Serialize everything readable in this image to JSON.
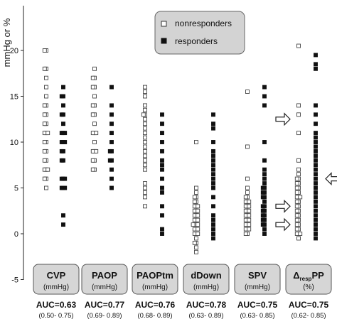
{
  "chart_data": {
    "type": "scatter",
    "ylabel": "mmHg or %",
    "ylim": [
      -5,
      20
    ],
    "yticks": [
      -5,
      0,
      5,
      10,
      15,
      20
    ],
    "legend": {
      "placement": "top-center",
      "items": [
        {
          "label": "nonresponders",
          "marker": "open-square"
        },
        {
          "label": "responders",
          "marker": "filled-square"
        }
      ]
    },
    "groups": [
      {
        "label": "CVP",
        "unit": "(mmHg)",
        "auc": "AUC=0.63",
        "ci": "(0.50- 0.75)",
        "nonresponders": [
          20,
          20,
          18,
          18,
          17,
          16,
          15,
          14,
          14,
          13,
          13,
          12,
          12,
          11,
          11,
          11,
          10,
          10,
          9,
          9,
          8,
          8,
          7,
          7,
          7,
          6,
          6,
          5
        ],
        "responders": [
          16,
          15,
          15,
          14,
          13,
          13,
          12,
          11,
          11,
          11,
          10,
          10,
          10,
          9,
          9,
          8,
          8,
          6,
          6,
          6,
          5,
          5,
          5,
          2,
          1
        ]
      },
      {
        "label": "PAOP",
        "unit": "(mmHg)",
        "auc": "AUC=0.77",
        "ci": "(0.69- 0.89)",
        "nonresponders": [
          18,
          17,
          17,
          16,
          16,
          15,
          14,
          14,
          13,
          13,
          12,
          11,
          11,
          11,
          10,
          9,
          9,
          9,
          8,
          8,
          7,
          7
        ],
        "responders": [
          16,
          14,
          13,
          12,
          11,
          10,
          9,
          9,
          8,
          8,
          7,
          6,
          5
        ]
      },
      {
        "label": "PAOPtm",
        "unit": "(mmHg)",
        "auc": "AUC=0.76",
        "ci": "(0.68- 0.89)",
        "nonresponders": [
          16,
          15.5,
          15,
          14,
          13.5,
          13,
          13,
          12.5,
          12,
          11.5,
          11,
          10.5,
          10,
          9.5,
          9,
          8.5,
          8,
          7.5,
          7,
          5.5,
          5,
          4.5,
          4,
          3
        ],
        "responders": [
          13,
          12,
          11,
          10,
          9,
          8,
          7.5,
          7,
          6,
          5,
          4.5,
          3,
          2,
          0.5,
          0
        ]
      },
      {
        "label": "dDown",
        "unit": "(mmHg)",
        "auc": "AUC=0.78",
        "ci": "(0.63- 0.89)",
        "nonresponders": [
          10,
          5,
          4.5,
          4,
          4,
          3.5,
          3.5,
          3,
          3,
          3,
          2.5,
          2.5,
          2.5,
          2,
          2,
          2,
          1.5,
          1.5,
          1.5,
          1,
          1,
          1,
          1,
          0.5,
          0.5,
          0.5,
          0,
          0,
          0,
          -0.5,
          -1,
          -1,
          -1.5,
          -2
        ],
        "responders": [
          13,
          12,
          11.5,
          10,
          9,
          8.5,
          8,
          7.5,
          7,
          6.5,
          6,
          5.5,
          5,
          4,
          3,
          2,
          1.5,
          1,
          0.5,
          0,
          -0.5
        ]
      },
      {
        "label": "SPV",
        "unit": "(mmHg)",
        "auc": "AUC=0.75",
        "ci": "(0.63- 0.85)",
        "nonresponders": [
          15.5,
          9.5,
          6,
          5,
          4.5,
          4,
          4,
          3.5,
          3.5,
          3.5,
          3,
          3,
          3,
          2.5,
          2.5,
          2.5,
          2,
          2,
          2,
          1.5,
          1.5,
          1.5,
          1,
          1,
          1,
          0.5,
          0.5,
          0.5,
          0,
          0
        ],
        "responders": [
          16,
          15,
          14,
          10,
          8,
          7,
          6.5,
          6,
          5.5,
          5,
          5,
          4.5,
          4.5,
          4,
          4,
          3.5,
          3,
          3,
          2.5,
          2.5,
          2,
          2,
          1.5,
          1.5,
          1,
          1,
          0.5,
          0
        ]
      },
      {
        "label": "Δ_resp PP",
        "unit": "(%)",
        "auc": "AUC=0.75",
        "ci": "(0.62- 0.85)",
        "nonresponders": [
          20.5,
          14,
          13,
          11,
          8,
          7,
          6.5,
          6,
          6,
          5.5,
          5.5,
          5,
          5,
          4.5,
          4.5,
          4,
          4,
          4,
          3.5,
          3.5,
          3,
          3,
          2.5,
          2.5,
          2,
          2,
          1.5,
          1.5,
          1,
          1,
          0.5,
          0.5,
          0,
          0,
          0,
          -0.5
        ],
        "responders": [
          19.5,
          18.5,
          18,
          14,
          13,
          12,
          11,
          10.5,
          10,
          9.5,
          9,
          8.5,
          8,
          7.5,
          7,
          6.5,
          6,
          5.5,
          5,
          4.5,
          4,
          3.5,
          3,
          2.5,
          2,
          1.5,
          1,
          0.5,
          0,
          -0.5
        ]
      }
    ],
    "arrows": [
      {
        "group": 4,
        "side": "right",
        "y": 12.5
      },
      {
        "group": 4,
        "side": "right",
        "y": 3
      },
      {
        "group": 4,
        "side": "right",
        "y": 1
      },
      {
        "group": 5,
        "side": "left",
        "y": 6
      }
    ]
  }
}
